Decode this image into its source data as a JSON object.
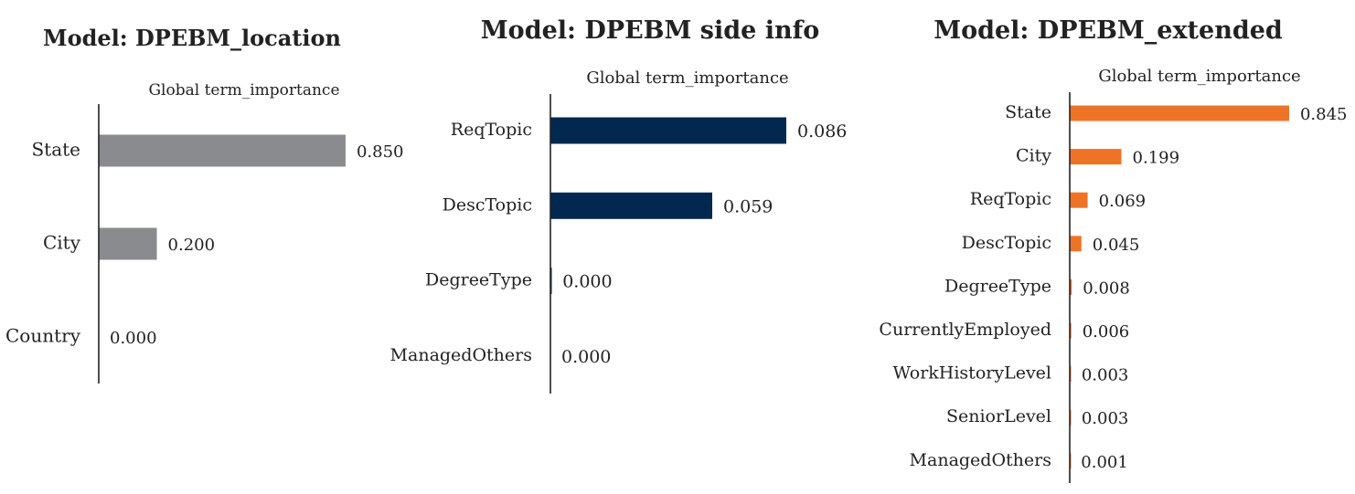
{
  "chart_data": [
    {
      "type": "bar",
      "orientation": "horizontal",
      "title": "Model: DPEBM_location",
      "subtitle": "Global term_importance",
      "color": "#8a8b8f",
      "categories": [
        "State",
        "City",
        "Country"
      ],
      "values": [
        0.85,
        0.2,
        0.0
      ],
      "value_labels": [
        "0.850",
        "0.200",
        "0.000"
      ]
    },
    {
      "type": "bar",
      "orientation": "horizontal",
      "title": "Model: DPEBM side info",
      "subtitle": "Global term_importance",
      "color": "#03284f",
      "categories": [
        "ReqTopic",
        "DescTopic",
        "DegreeType",
        "ManagedOthers"
      ],
      "values": [
        0.086,
        0.059,
        0.0004,
        0.0
      ],
      "value_labels": [
        "0.086",
        "0.059",
        "0.000",
        "0.000"
      ]
    },
    {
      "type": "bar",
      "orientation": "horizontal",
      "title": "Model: DPEBM_extended",
      "subtitle": "Global term_importance",
      "color": "#ef7327",
      "categories": [
        "State",
        "City",
        "ReqTopic",
        "DescTopic",
        "DegreeType",
        "CurrentlyEmployed",
        "WorkHistoryLevel",
        "SeniorLevel",
        "ManagedOthers"
      ],
      "values": [
        0.845,
        0.199,
        0.069,
        0.045,
        0.008,
        0.006,
        0.003,
        0.003,
        0.001
      ],
      "value_labels": [
        "0.845",
        "0.199",
        "0.069",
        "0.045",
        "0.008",
        "0.006",
        "0.003",
        "0.003",
        "0.001"
      ]
    }
  ]
}
